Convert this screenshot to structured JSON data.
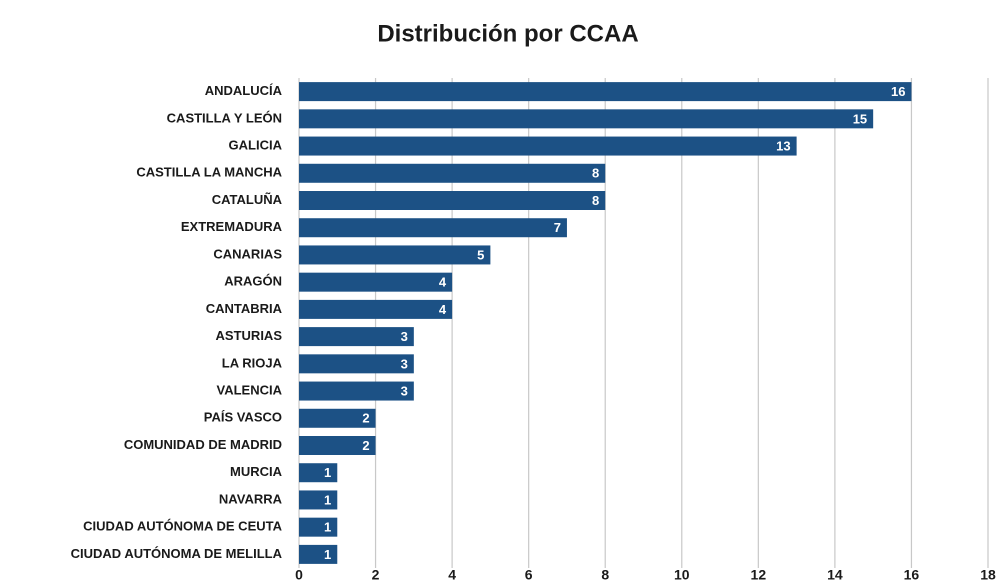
{
  "chart_data": {
    "type": "bar",
    "orientation": "horizontal",
    "title": "Distribución por CCAA",
    "categories": [
      "ANDALUCÍA",
      "CASTILLA Y LEÓN",
      "GALICIA",
      "CASTILLA LA MANCHA",
      "CATALUÑA",
      "EXTREMADURA",
      "CANARIAS",
      "ARAGÓN",
      "CANTABRIA",
      "ASTURIAS",
      "LA RIOJA",
      "VALENCIA",
      "PAÍS VASCO",
      "COMUNIDAD DE MADRID",
      "MURCIA",
      "NAVARRA",
      "CIUDAD AUTÓNOMA DE CEUTA",
      "CIUDAD AUTÓNOMA DE MELILLA"
    ],
    "values": [
      16,
      15,
      13,
      8,
      8,
      7,
      5,
      4,
      4,
      3,
      3,
      3,
      2,
      2,
      1,
      1,
      1,
      1
    ],
    "color": "#1c5185",
    "xlim": [
      0,
      18
    ],
    "xticks": [
      0,
      2,
      4,
      6,
      8,
      10,
      12,
      14,
      16,
      18
    ],
    "grid": true
  }
}
